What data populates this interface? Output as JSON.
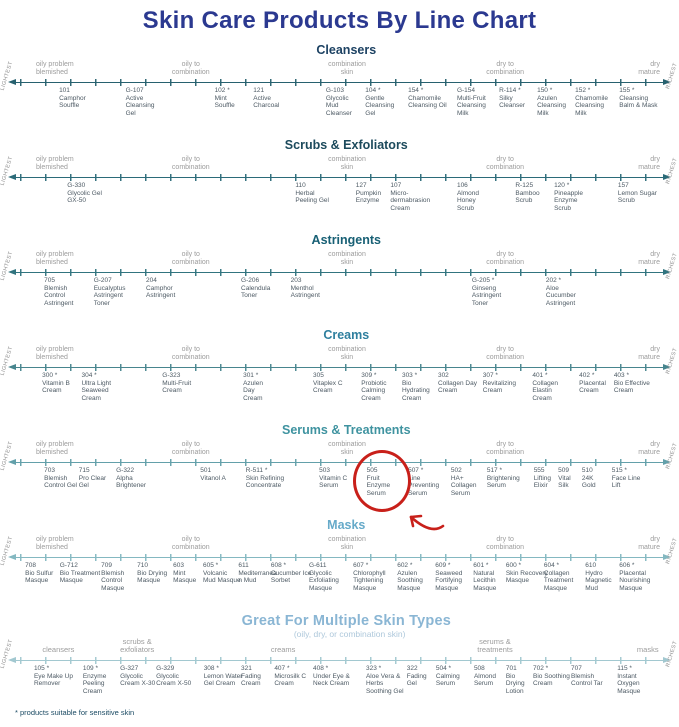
{
  "title": "Skin Care Products By Line Chart",
  "colors": {
    "title": "#2b3990",
    "highlight": "#c8201a",
    "label_gray": "#9c9c9c",
    "product_text": "#4d5a64"
  },
  "axis": {
    "left_label": "LIGHTEST",
    "right_label": "RICHEST"
  },
  "skin_labels": [
    {
      "text": "oily problem blemished",
      "x": 5.3,
      "align": "left",
      "w": 38
    },
    {
      "text": "oily to combination",
      "x": 28.1,
      "align": "center",
      "w": 46
    },
    {
      "text": "combination skin",
      "x": 51.1,
      "align": "center",
      "w": 46
    },
    {
      "text": "dry to combination",
      "x": 74.4,
      "align": "center",
      "w": 46
    },
    {
      "text": "dry mature",
      "x": 97.2,
      "align": "right",
      "w": 30
    }
  ],
  "highlight_note": "red circle and arrow emphasizing product 505 Fruit Enzyme Serum",
  "sections": [
    {
      "id": "cleansers",
      "title": "Cleansers",
      "color": "#1d4263",
      "axis_color": "#27616f",
      "products": [
        {
          "code": "101",
          "name": "Camphor Souffle",
          "x": 8.7,
          "w": 36
        },
        {
          "code": "G-107",
          "name": "Active Cleansing Gel",
          "x": 18.5,
          "w": 40
        },
        {
          "code": "102 *",
          "name": "Mint Souffle",
          "x": 31.6,
          "w": 30
        },
        {
          "code": "121",
          "name": "Active Charcoal",
          "x": 37.3,
          "w": 36
        },
        {
          "code": "G-103",
          "name": "Glycolic Mud Cleanser",
          "x": 48.0,
          "w": 34
        },
        {
          "code": "104 *",
          "name": "Gentle Cleansing Gel",
          "x": 53.8,
          "w": 38
        },
        {
          "code": "154 *",
          "name": "Chamomile Cleansing Oil",
          "x": 60.1,
          "w": 42
        },
        {
          "code": "G-154",
          "name": "Multi-Fruit Cleansing Milk",
          "x": 67.3,
          "w": 40
        },
        {
          "code": "R-114 *",
          "name": "Silky Cleanser",
          "x": 73.5,
          "w": 38
        },
        {
          "code": "150 *",
          "name": "Azulen Cleansing Milk",
          "x": 79.1,
          "w": 40
        },
        {
          "code": "152 *",
          "name": "Chamomile Cleansing Milk",
          "x": 84.7,
          "w": 42
        },
        {
          "code": "155 *",
          "name": "Cleansing Balm & Mask",
          "x": 91.2,
          "w": 40
        }
      ]
    },
    {
      "id": "scrubs-exfoliators",
      "title": "Scrubs & Exfoliators",
      "color": "#1c4a5c",
      "axis_color": "#2b6b79",
      "products": [
        {
          "code": "G-330",
          "name": "Glycolic Gel GX-50",
          "x": 9.9,
          "w": 38
        },
        {
          "code": "110",
          "name": "Herbal Peeling Gel",
          "x": 43.5,
          "w": 42
        },
        {
          "code": "127",
          "name": "Pumpkin Enzyme",
          "x": 52.4,
          "w": 34
        },
        {
          "code": "107",
          "name": "Micro-dermabrasion Cream",
          "x": 57.5,
          "w": 48
        },
        {
          "code": "106",
          "name": "Almond Honey Scrub",
          "x": 67.3,
          "w": 30
        },
        {
          "code": "R-125",
          "name": "Bamboo Scrub",
          "x": 75.9,
          "w": 34
        },
        {
          "code": "120 *",
          "name": "Pineapple Enzyme Scrub",
          "x": 81.6,
          "w": 38
        },
        {
          "code": "157",
          "name": "Lemon Sugar Scrub",
          "x": 91.0,
          "w": 44
        }
      ]
    },
    {
      "id": "astringents",
      "title": "Astringents",
      "color": "#186075",
      "axis_color": "#31747f",
      "products": [
        {
          "code": "705",
          "name": "Blemish Control Astringent",
          "x": 6.5,
          "w": 38
        },
        {
          "code": "G-207",
          "name": "Eucalyptus Astringent Toner",
          "x": 13.8,
          "w": 42
        },
        {
          "code": "204",
          "name": "Camphor Astringent",
          "x": 21.5,
          "w": 38
        },
        {
          "code": "G-206",
          "name": "Calendula Toner",
          "x": 35.5,
          "w": 40
        },
        {
          "code": "203",
          "name": "Menthol Astringent",
          "x": 42.8,
          "w": 40
        },
        {
          "code": "G-205 *",
          "name": "Ginseng Astringent Toner",
          "x": 69.5,
          "w": 40
        },
        {
          "code": "202 *",
          "name": "Aloe Cucumber Astringent",
          "x": 80.4,
          "w": 42
        }
      ]
    },
    {
      "id": "creams",
      "title": "Creams",
      "color": "#2f7f9e",
      "axis_color": "#47858e",
      "products": [
        {
          "code": "300 *",
          "name": "Vitamin B Cream",
          "x": 6.2,
          "w": 40
        },
        {
          "code": "304 *",
          "name": "Ultra Light Seaweed Cream",
          "x": 12.0,
          "w": 42
        },
        {
          "code": "G-323",
          "name": "Multi-Fruit Cream",
          "x": 23.9,
          "w": 40
        },
        {
          "code": "301 *",
          "name": "Azulen Day Cream",
          "x": 35.8,
          "w": 28
        },
        {
          "code": "305",
          "name": "Vitaplex C Cream",
          "x": 46.1,
          "w": 36
        },
        {
          "code": "309 *",
          "name": "Probiotic Calming Cream",
          "x": 53.2,
          "w": 38
        },
        {
          "code": "303 *",
          "name": "Bio Hydrating Cream",
          "x": 59.2,
          "w": 38
        },
        {
          "code": "302",
          "name": "Collagen Day Cream",
          "x": 64.5,
          "w": 42
        },
        {
          "code": "307 *",
          "name": "Revitalizing Cream",
          "x": 71.1,
          "w": 46
        },
        {
          "code": "401 *",
          "name": "Collagen Elastin Cream",
          "x": 78.4,
          "w": 38
        },
        {
          "code": "402 *",
          "name": "Placental Cream",
          "x": 85.3,
          "w": 40
        },
        {
          "code": "403 *",
          "name": "Bio Effective Cream",
          "x": 90.4,
          "w": 36
        }
      ]
    },
    {
      "id": "serums-treatments",
      "title": "Serums & Treatments",
      "color": "#3f93a0",
      "axis_color": "#63a0aa",
      "products": [
        {
          "code": "703",
          "name": "Blemish Control Gel",
          "x": 6.5,
          "w": 36
        },
        {
          "code": "715",
          "name": "Pro Clear Gel",
          "x": 11.6,
          "w": 38
        },
        {
          "code": "G-322",
          "name": "Alpha Brightener",
          "x": 17.1,
          "w": 44
        },
        {
          "code": "501",
          "name": "Vitanol A",
          "x": 29.5,
          "w": 32
        },
        {
          "code": "R-511 *",
          "name": "Skin Refining Concentrate",
          "x": 36.2,
          "w": 48
        },
        {
          "code": "503",
          "name": "Vitamin C Serum",
          "x": 47.0,
          "w": 36
        },
        {
          "code": "505",
          "name": "Fruit Enzyme Serum",
          "x": 54.0,
          "w": 32,
          "highlight": true
        },
        {
          "code": "507 *",
          "name": "Line Preventing Serum",
          "x": 60.1,
          "w": 44
        },
        {
          "code": "502",
          "name": "HA+ Collagen Serum",
          "x": 66.4,
          "w": 40
        },
        {
          "code": "517 *",
          "name": "Brightening Serum",
          "x": 71.7,
          "w": 46
        },
        {
          "code": "555",
          "name": "Lifting Elixir",
          "x": 78.6,
          "w": 28
        },
        {
          "code": "509",
          "name": "Vital Silk",
          "x": 82.2,
          "w": 24
        },
        {
          "code": "510",
          "name": "24K Gold",
          "x": 85.7,
          "w": 24
        },
        {
          "code": "515 *",
          "name": "Face Line Lift",
          "x": 90.1,
          "w": 38
        }
      ]
    },
    {
      "id": "masks",
      "title": "Masks",
      "color": "#66aac9",
      "axis_color": "#84b8c1",
      "products": [
        {
          "code": "708",
          "name": "Bio Sulfur Masque",
          "x": 3.7,
          "w": 40
        },
        {
          "code": "G-712",
          "name": "Bio Treatment Masque",
          "x": 8.8,
          "w": 44
        },
        {
          "code": "709",
          "name": "Blemish Control Masque",
          "x": 14.9,
          "w": 36
        },
        {
          "code": "710",
          "name": "Bio Drying Masque",
          "x": 20.2,
          "w": 32
        },
        {
          "code": "603",
          "name": "Mint Masque",
          "x": 25.5,
          "w": 32
        },
        {
          "code": "605 *",
          "name": "Volcanic Mud Masque",
          "x": 29.9,
          "w": 38
        },
        {
          "code": "611",
          "name": "Mediterranean Mud",
          "x": 35.1,
          "w": 40
        },
        {
          "code": "608 *",
          "name": "Cucumber Ice Sorbet",
          "x": 39.9,
          "w": 42
        },
        {
          "code": "G-611",
          "name": "Glycolic Exfoliating Masque",
          "x": 45.5,
          "w": 42
        },
        {
          "code": "607 *",
          "name": "Chlorophyll Tightening Masque",
          "x": 52.0,
          "w": 46
        },
        {
          "code": "602 *",
          "name": "Azulen Soothing Masque",
          "x": 58.5,
          "w": 40
        },
        {
          "code": "609 *",
          "name": "Seaweed Fortifying Masque",
          "x": 64.1,
          "w": 42
        },
        {
          "code": "601 *",
          "name": "Natural Lecithin Masque",
          "x": 69.7,
          "w": 38
        },
        {
          "code": "600 *",
          "name": "Skin Recovery Masque",
          "x": 74.5,
          "w": 42
        },
        {
          "code": "604 *",
          "name": "Collagen Treatment Masque",
          "x": 80.1,
          "w": 44
        },
        {
          "code": "610",
          "name": "Hydro Magnetic Mud",
          "x": 86.2,
          "w": 40
        },
        {
          "code": "606 *",
          "name": "Placental Nourishing Masque",
          "x": 91.2,
          "w": 44
        }
      ]
    },
    {
      "id": "multiple-skin-types",
      "title": "Great For Multiple Skin Types",
      "subtitle": "(oily, dry, or combination skin)",
      "color": "#8ab6d4",
      "axis_color": "#a2c8d0",
      "is_bottom": true,
      "footnote": "* products suitable for sensitive skin",
      "labels": [
        {
          "text": "cleansers",
          "x": 8.6,
          "align": "center",
          "w": 40
        },
        {
          "text": "scrubs & exfoliators",
          "x": 20.2,
          "align": "center",
          "w": 46
        },
        {
          "text": "creams",
          "x": 41.7,
          "align": "center",
          "w": 40
        },
        {
          "text": "serums & treatments",
          "x": 72.9,
          "align": "center",
          "w": 50
        },
        {
          "text": "masks",
          "x": 95.4,
          "align": "center",
          "w": 30
        }
      ],
      "products": [
        {
          "code": "105 *",
          "name": "Eye Make Up Remover",
          "x": 5.0,
          "w": 42
        },
        {
          "code": "109 *",
          "name": "Enzyme Peeling Cream",
          "x": 12.2,
          "w": 36
        },
        {
          "code": "G-327",
          "name": "Glycolic Cream X-30",
          "x": 17.7,
          "w": 36
        },
        {
          "code": "G-329",
          "name": "Glycolic Cream X-50",
          "x": 23.0,
          "w": 36
        },
        {
          "code": "308 *",
          "name": "Lemon Water Gel Cream",
          "x": 30.0,
          "w": 44
        },
        {
          "code": "321",
          "name": "Fading Cream",
          "x": 35.5,
          "w": 30
        },
        {
          "code": "407 *",
          "name": "Microsilk C Cream",
          "x": 40.4,
          "w": 40
        },
        {
          "code": "408 *",
          "name": "Under Eye & Neck Cream",
          "x": 46.1,
          "w": 42
        },
        {
          "code": "323 *",
          "name": "Aloe Vera & Herbs Soothing Gel",
          "x": 53.9,
          "w": 42
        },
        {
          "code": "322",
          "name": "Fading Gel",
          "x": 59.9,
          "w": 30
        },
        {
          "code": "504 *",
          "name": "Calming Serum",
          "x": 64.2,
          "w": 34
        },
        {
          "code": "508",
          "name": "Almond Serum",
          "x": 69.8,
          "w": 34
        },
        {
          "code": "701",
          "name": "Bio Drying Lotion",
          "x": 74.5,
          "w": 28
        },
        {
          "code": "702 *",
          "name": "Bio Soothing Cream",
          "x": 78.5,
          "w": 38
        },
        {
          "code": "707",
          "name": "Blemish Control Tar",
          "x": 84.1,
          "w": 34
        },
        {
          "code": "115 *",
          "name": "Instant Oxygen Masque",
          "x": 90.9,
          "w": 34
        }
      ]
    }
  ]
}
